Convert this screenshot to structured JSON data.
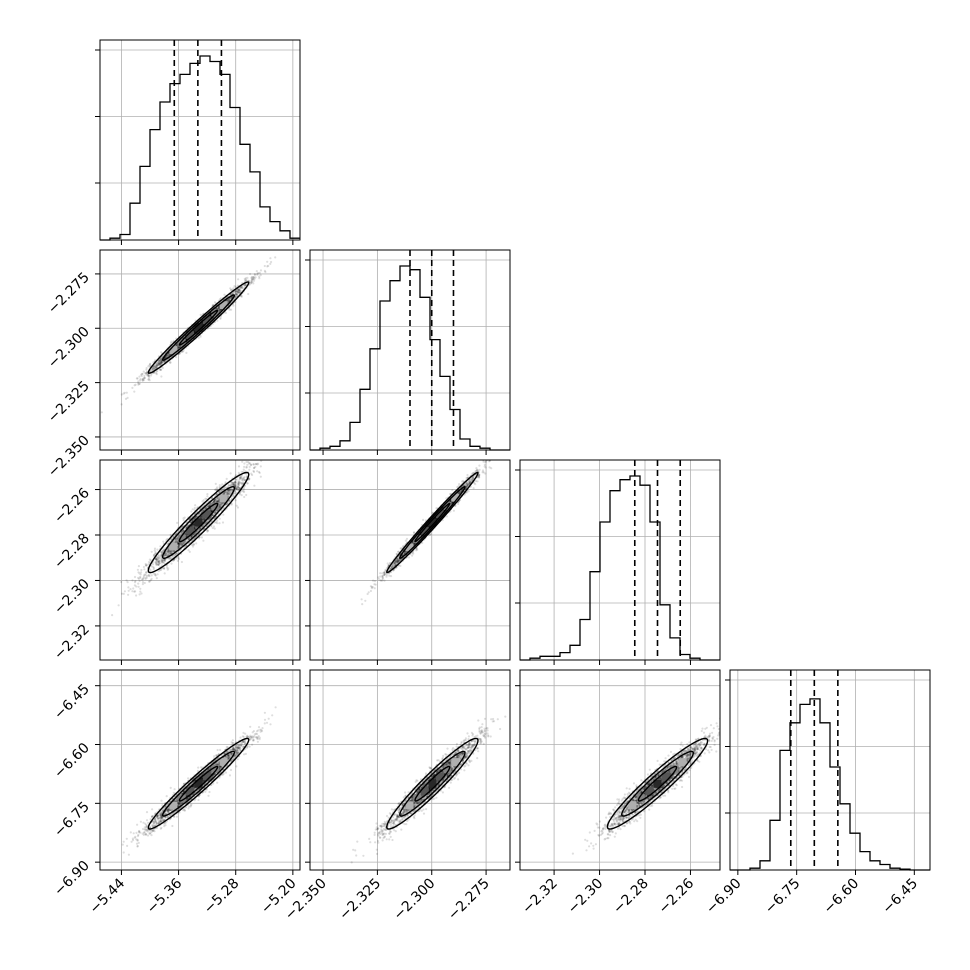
{
  "chart_data": {
    "type": "scatter",
    "title": "",
    "parameters": [
      {
        "range": [
          -5.47,
          -5.19
        ],
        "ticks": [
          -5.44,
          -5.36,
          -5.28,
          -5.2
        ],
        "tick_labels": [
          "−5.44",
          "−5.36",
          "−5.28",
          "−5.20"
        ],
        "mean": -5.3321,
        "std": 0.0335,
        "quantiles": [
          -5.366,
          -5.333,
          -5.3
        ]
      },
      {
        "range": [
          -2.356,
          -2.264
        ],
        "ticks": [
          -2.35,
          -2.325,
          -2.3,
          -2.275
        ],
        "tick_labels": [
          "−2.350",
          "−2.325",
          "−2.300",
          "−2.275"
        ],
        "mean": -2.2997,
        "std": 0.01,
        "quantiles": [
          -2.31,
          -2.3,
          -2.29
        ]
      },
      {
        "range": [
          -2.335,
          -2.247
        ],
        "ticks": [
          -2.32,
          -2.3,
          -2.28,
          -2.26
        ],
        "tick_labels": [
          "−2.32",
          "−2.30",
          "−2.28",
          "−2.26"
        ],
        "mean": -2.2745,
        "std": 0.0105,
        "quantiles": [
          -2.2845,
          -2.2745,
          -2.2645
        ]
      },
      {
        "range": [
          -6.92,
          -6.41
        ],
        "ticks": [
          -6.9,
          -6.75,
          -6.6,
          -6.45
        ],
        "tick_labels": [
          "−6.90",
          "−6.75",
          "−6.60",
          "−6.45"
        ],
        "mean": -6.7,
        "std": 0.055,
        "quantiles": [
          -6.765,
          -6.705,
          -6.645
        ]
      }
    ],
    "histograms": [
      [
        0,
        0.01,
        0.03,
        0.2,
        0.4,
        0.6,
        0.75,
        0.85,
        0.9,
        0.96,
        1.0,
        0.97,
        0.9,
        0.72,
        0.52,
        0.37,
        0.18,
        0.1,
        0.05,
        0.01
      ],
      [
        0,
        0.01,
        0.02,
        0.05,
        0.15,
        0.33,
        0.55,
        0.81,
        0.92,
        1.0,
        0.98,
        0.83,
        0.6,
        0.4,
        0.22,
        0.06,
        0.02,
        0.01,
        0,
        0
      ],
      [
        0,
        0.01,
        0.02,
        0.02,
        0.04,
        0.08,
        0.22,
        0.48,
        0.75,
        0.92,
        0.98,
        1.0,
        0.95,
        0.75,
        0.3,
        0.12,
        0.03,
        0.01,
        0,
        0
      ],
      [
        0,
        0,
        0.01,
        0.05,
        0.27,
        0.65,
        0.8,
        0.9,
        0.93,
        0.8,
        0.56,
        0.36,
        0.2,
        0.1,
        0.05,
        0.03,
        0.01,
        0.005,
        0,
        0
      ]
    ],
    "correlations": {
      "1-0": 0.985,
      "2-0": 0.96,
      "2-1": 0.99,
      "3-0": 0.97,
      "3-1": 0.955,
      "3-2": 0.95
    },
    "grid": true,
    "legend": "none"
  }
}
